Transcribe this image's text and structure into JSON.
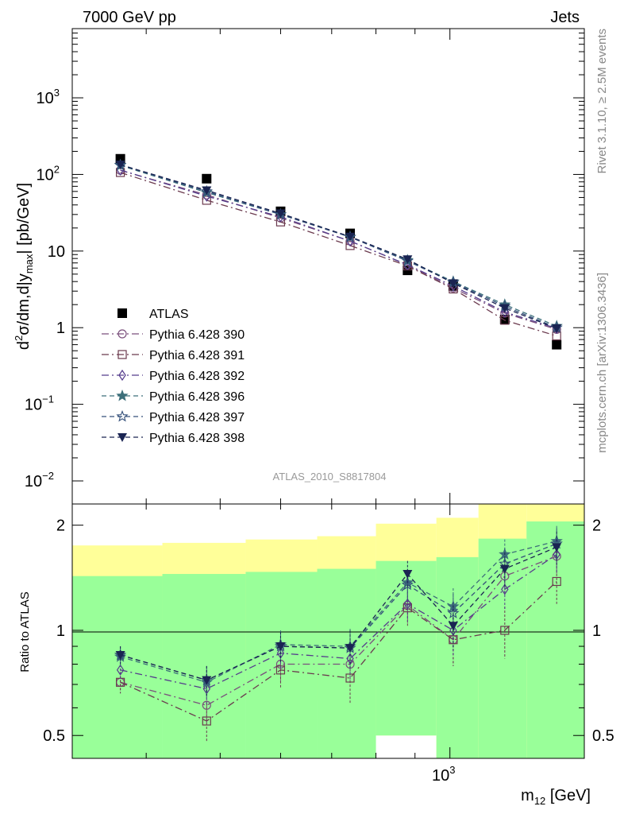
{
  "header": {
    "left": "7000 GeV pp",
    "right": "Jets",
    "side_top": "Rivet 3.1.10, ≥ 2.5M events",
    "side_bottom": "mcplots.cern.ch [arXiv:1306.3436]",
    "analysis": "ATLAS_2010_S8817804"
  },
  "chart_data": [
    {
      "type": "scatter",
      "yscale": "log",
      "xscale": "log",
      "ylabel_parts": [
        "d",
        "2",
        "σ/dm,d|y",
        "max",
        "| [pb/GeV]"
      ],
      "y_tick_labels": [
        {
          "v": 0.01,
          "base": "10",
          "exp": "−2"
        },
        {
          "v": 0.1,
          "base": "10",
          "exp": "−1"
        },
        {
          "v": 1,
          "base": "1",
          "exp": ""
        },
        {
          "v": 10,
          "base": "10",
          "exp": ""
        },
        {
          "v": 100,
          "base": "10",
          "exp": "2"
        },
        {
          "v": 1000,
          "base": "10",
          "exp": "3"
        }
      ],
      "x": [
        370,
        480,
        600,
        740,
        880,
        1010,
        1180,
        1380
      ],
      "series": [
        {
          "name": "ATLAS",
          "color": "#000000",
          "marker": "square-filled",
          "line": "none",
          "values": [
            160,
            88,
            33,
            17,
            5.6,
            3.5,
            1.28,
            0.6
          ]
        },
        {
          "name": "Pythia 6.428 390",
          "color": "#7a4f7c",
          "marker": "circle",
          "line": "dashdot",
          "values": [
            113,
            54,
            27,
            13.5,
            6.6,
            3.3,
            1.55,
            0.95
          ]
        },
        {
          "name": "Pythia 6.428 391",
          "color": "#6b3a4e",
          "marker": "square",
          "line": "dashdot",
          "values": [
            106,
            46,
            24,
            11.8,
            6.4,
            3.2,
            1.25,
            0.78
          ]
        },
        {
          "name": "Pythia 6.428 392",
          "color": "#553c8c",
          "marker": "diamond",
          "line": "dashdot",
          "values": [
            114,
            52,
            28,
            13.5,
            6.6,
            3.5,
            1.6,
            0.98
          ]
        },
        {
          "name": "Pythia 6.428 396",
          "color": "#3d6f7a",
          "marker": "star-filled",
          "line": "dashed",
          "values": [
            131,
            58,
            30,
            15.3,
            7.6,
            4.0,
            2.0,
            1.05
          ]
        },
        {
          "name": "Pythia 6.428 397",
          "color": "#34507a",
          "marker": "star",
          "line": "dashed",
          "values": [
            133,
            60,
            30,
            15.2,
            7.4,
            3.9,
            1.9,
            1.0
          ]
        },
        {
          "name": "Pythia 6.428 398",
          "color": "#1a2452",
          "marker": "triangle-down-filled",
          "line": "dashed",
          "values": [
            134,
            62,
            31,
            15.4,
            7.8,
            3.8,
            1.8,
            0.98
          ]
        }
      ],
      "legend": "middle-left"
    },
    {
      "type": "scatter",
      "xscale": "log",
      "ylabel": "Ratio to ATLAS",
      "xlabel_parts": [
        "m",
        "12",
        " [GeV]"
      ],
      "x_tick_label": "10",
      "x_tick_label_exp": "3",
      "y_tick_labels": [
        "0.5",
        "1",
        "2"
      ],
      "bands": {
        "edges": [
          320,
          420,
          540,
          670,
          800,
          960,
          1090,
          1260,
          1500
        ],
        "yellow_lo": [
          0.69,
          0.67,
          0.66,
          0.63,
          0.5,
          0.41,
          0.34,
          0.34
        ],
        "yellow_hi": [
          1.75,
          1.78,
          1.82,
          1.86,
          2.02,
          2.1,
          2.45,
          2.45
        ],
        "green_lo": [
          0.34,
          0.34,
          0.34,
          0.34,
          0.5,
          0.41,
          0.34,
          0.34
        ],
        "green_hi": [
          1.43,
          1.45,
          1.47,
          1.5,
          1.58,
          1.62,
          1.83,
          2.05
        ]
      },
      "x": [
        370,
        480,
        600,
        740,
        880,
        1010,
        1180,
        1380
      ],
      "series": [
        {
          "name": "Pythia 6.428 390",
          "values": [
            0.71,
            0.61,
            0.8,
            0.8,
            1.18,
            0.94,
            1.43,
            1.63
          ]
        },
        {
          "name": "Pythia 6.428 391",
          "values": [
            0.71,
            0.55,
            0.77,
            0.73,
            1.16,
            0.94,
            1.0,
            1.38
          ]
        },
        {
          "name": "Pythia 6.428 392",
          "values": [
            0.77,
            0.68,
            0.86,
            0.83,
            1.19,
            1.0,
            1.31,
            1.65
          ]
        },
        {
          "name": "Pythia 6.428 396",
          "values": [
            0.84,
            0.71,
            0.91,
            0.9,
            1.37,
            1.17,
            1.65,
            1.8
          ]
        },
        {
          "name": "Pythia 6.428 397",
          "values": [
            0.85,
            0.72,
            0.9,
            0.89,
            1.35,
            1.12,
            1.55,
            1.77
          ]
        },
        {
          "name": "Pythia 6.428 398",
          "values": [
            0.85,
            0.72,
            0.9,
            0.89,
            1.45,
            1.03,
            1.5,
            1.73
          ]
        }
      ]
    }
  ]
}
